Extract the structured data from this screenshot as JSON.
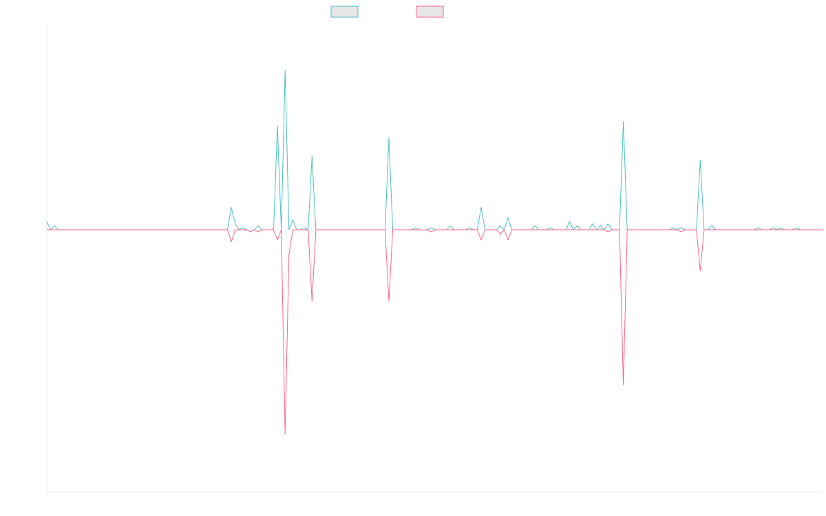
{
  "chart_data": {
    "type": "line",
    "title": "",
    "xlabel": "",
    "ylabel": "",
    "ylim": [
      -1,
      1
    ],
    "grid": false,
    "legend": {
      "placement": "top-center",
      "entries": [
        {
          "color": "#4bc0c0",
          "fill": "#e6e6e6"
        },
        {
          "color": "#ff6384",
          "fill": "#e6e6e6"
        }
      ]
    },
    "series": [
      {
        "color": "#4bc0c0",
        "values": [
          0.04,
          0,
          0.02,
          0,
          0,
          0,
          0,
          0,
          0,
          0,
          0,
          0,
          0,
          0,
          0,
          0,
          0,
          0,
          0,
          0,
          0,
          0,
          0,
          0,
          0,
          0,
          0,
          0,
          0,
          0,
          0,
          0,
          0,
          0,
          0,
          0,
          0,
          0,
          0,
          0,
          0,
          0,
          0,
          0,
          0,
          0,
          0,
          0,
          0.11,
          0.03,
          0,
          0.01,
          0,
          -0.01,
          0,
          0.02,
          0,
          0,
          0,
          0,
          0.51,
          0,
          0.78,
          0,
          0.05,
          0,
          0,
          0.01,
          0,
          0.36,
          0,
          0,
          0,
          0,
          0,
          0,
          0,
          0,
          0,
          0,
          0,
          0,
          0,
          0,
          0,
          0,
          0,
          0,
          0,
          0.45,
          0,
          0,
          0,
          0,
          0,
          0,
          0.01,
          0,
          0,
          0,
          0.01,
          0,
          0,
          0,
          0,
          0.02,
          0,
          0,
          0,
          0,
          0.01,
          0,
          0,
          0.11,
          0,
          0,
          0,
          0,
          0.02,
          0,
          0.06,
          0,
          0,
          0,
          0,
          0,
          0,
          0.02,
          0,
          0,
          0,
          0.01,
          0,
          0,
          0,
          0,
          0.04,
          0,
          0.02,
          0,
          0,
          0,
          0.03,
          0,
          0.02,
          0,
          0.03,
          0,
          0,
          0,
          0.53,
          0,
          0,
          0,
          0,
          0,
          0,
          0,
          0,
          0,
          0,
          0,
          0,
          0.01,
          0,
          0.01,
          0,
          0,
          0,
          0,
          0.34,
          0,
          0,
          0.02,
          0,
          0,
          0,
          0,
          0,
          0,
          0,
          0,
          0,
          0,
          0,
          0.01,
          0,
          0,
          0,
          0.01,
          0,
          0.01,
          0,
          0,
          0,
          0.01,
          0,
          0,
          0,
          0,
          0,
          0,
          0
        ]
      },
      {
        "color": "#ff6384",
        "values": [
          0,
          0,
          0,
          0,
          0,
          0,
          0,
          0,
          0,
          0,
          0,
          0,
          0,
          0,
          0,
          0,
          0,
          0,
          0,
          0,
          0,
          0,
          0,
          0,
          0,
          0,
          0,
          0,
          0,
          0,
          0,
          0,
          0,
          0,
          0,
          0,
          0,
          0,
          0,
          0,
          0,
          0,
          0,
          0,
          0,
          0,
          0,
          0,
          -0.06,
          0,
          0,
          0,
          0,
          -0.01,
          0,
          -0.01,
          0,
          0,
          0,
          0,
          -0.05,
          0,
          -1,
          -0.12,
          0,
          0,
          0,
          0,
          0,
          -0.35,
          0,
          0,
          0,
          0,
          0,
          0,
          0,
          0,
          0,
          0,
          0,
          0,
          0,
          0,
          0,
          0,
          0,
          0,
          0,
          -0.35,
          0,
          0,
          0,
          0,
          0,
          0,
          0,
          0,
          0,
          0,
          -0.01,
          0,
          0,
          0,
          0,
          0,
          0,
          0,
          0,
          0,
          0,
          0,
          0,
          -0.05,
          0,
          0,
          0,
          0,
          -0.02,
          0,
          -0.05,
          0,
          0,
          0,
          0,
          0,
          0,
          0,
          0,
          0,
          0,
          0,
          0,
          0,
          0,
          0,
          0,
          0,
          0,
          0,
          0,
          0,
          0,
          0,
          0,
          0,
          -0.01,
          0,
          0,
          0,
          -0.76,
          0,
          0,
          0,
          0,
          0,
          0,
          0,
          0,
          0,
          0,
          0,
          0,
          0,
          0,
          -0.01,
          0,
          0,
          0,
          0,
          -0.2,
          0,
          0,
          0,
          0,
          0,
          0,
          0,
          0,
          0,
          0,
          0,
          0,
          0,
          0,
          0,
          0,
          0,
          0,
          0,
          0,
          0,
          0,
          0,
          0,
          0,
          0,
          0,
          0,
          0,
          0,
          0,
          0
        ]
      }
    ]
  }
}
